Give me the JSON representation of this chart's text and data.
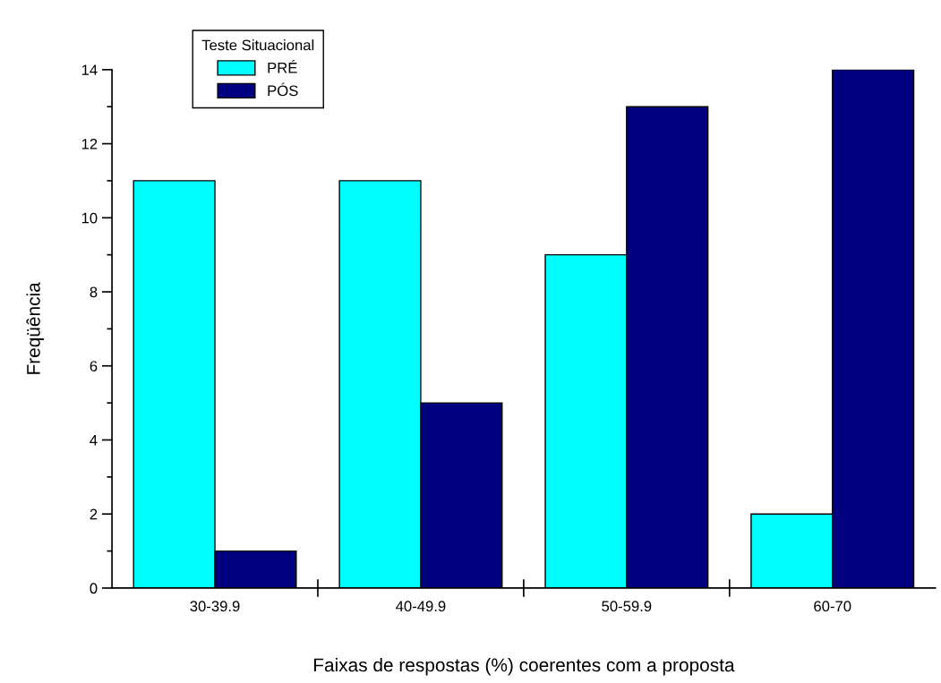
{
  "chart_data": {
    "type": "bar",
    "xlabel": "Faixas de respostas (%) coerentes com a proposta",
    "ylabel": "Freqüência",
    "legend_title": "Teste Situacional",
    "categories": [
      "30-39.9",
      "40-49.9",
      "50-59.9",
      "60-70"
    ],
    "series": [
      {
        "name": "PRÉ",
        "color": "#00ffff",
        "values": [
          11,
          11,
          9,
          2
        ]
      },
      {
        "name": "PÓS",
        "color": "#000080",
        "values": [
          1,
          5,
          13,
          14
        ]
      }
    ],
    "ylim": [
      0,
      14
    ],
    "yticks": [
      0,
      2,
      4,
      6,
      8,
      10,
      12,
      14
    ],
    "grid": false,
    "legend": "top left"
  }
}
